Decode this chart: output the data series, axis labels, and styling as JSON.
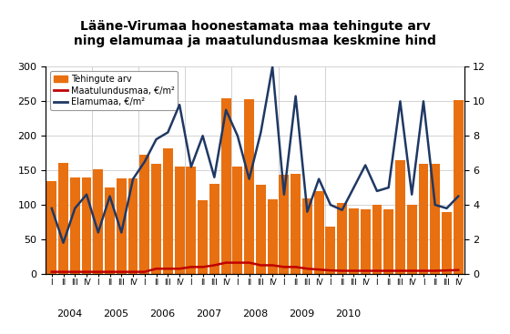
{
  "title": "Lääne-Virumaa hoonestamata maa tehingute arv\nning elamumaa ja maatulundusmaa keskmine hind",
  "bar_color": "#E87010",
  "line_elamumaa_color": "#1F3864",
  "line_maatulundusmaa_color": "#C00000",
  "years": [
    2004,
    2005,
    2006,
    2007,
    2008,
    2009,
    2010
  ],
  "quarters": [
    "I",
    "II",
    "III",
    "IV"
  ],
  "bar_values": [
    135,
    161,
    140,
    140,
    152,
    125,
    138,
    138,
    172,
    160,
    182,
    155,
    155,
    107,
    130,
    255,
    155,
    253,
    129,
    108,
    143,
    145,
    109,
    120,
    68,
    103,
    95,
    93,
    100,
    93,
    165,
    100,
    160,
    160,
    90,
    252
  ],
  "elamumaa_values": [
    3.8,
    1.8,
    3.8,
    4.6,
    2.4,
    4.5,
    2.4,
    5.5,
    6.5,
    7.8,
    8.2,
    9.8,
    6.2,
    8.0,
    5.6,
    9.5,
    8.0,
    5.5,
    8.2,
    12.0,
    4.6,
    10.3,
    3.6,
    5.5,
    4.0,
    3.7,
    5.0,
    6.3,
    4.8,
    5.0,
    10.0,
    4.6,
    10.0,
    4.0,
    3.8,
    4.5
  ],
  "maatulundusmaa_values": [
    0.12,
    0.12,
    0.12,
    0.12,
    0.12,
    0.12,
    0.12,
    0.12,
    0.12,
    0.3,
    0.3,
    0.3,
    0.4,
    0.4,
    0.5,
    0.65,
    0.65,
    0.65,
    0.5,
    0.5,
    0.4,
    0.4,
    0.3,
    0.25,
    0.2,
    0.18,
    0.18,
    0.18,
    0.18,
    0.18,
    0.18,
    0.18,
    0.18,
    0.18,
    0.2,
    0.22
  ],
  "ylim_left": [
    0,
    300
  ],
  "ylim_right": [
    0,
    12
  ],
  "yticks_left": [
    0,
    50,
    100,
    150,
    200,
    250,
    300
  ],
  "yticks_right": [
    0,
    2,
    4,
    6,
    8,
    10,
    12
  ],
  "legend_labels": [
    "Tehingute arv",
    "Maatulundusmaa, €/m²",
    "Elamumaa, €/m²"
  ]
}
